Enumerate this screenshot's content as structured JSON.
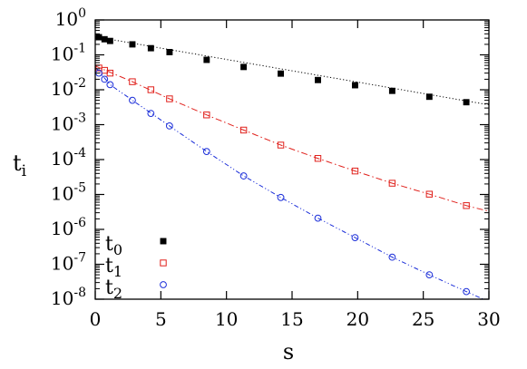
{
  "chart_data": {
    "type": "scatter",
    "xlabel": "s",
    "ylabel": "t",
    "ylabel_sub": "i",
    "xlim": [
      0,
      30
    ],
    "ylim": [
      1e-08,
      1
    ],
    "yscale": "log",
    "grid": false,
    "legend_position": "bottom-left",
    "x_ticks": [
      "0",
      "5",
      "10",
      "15",
      "20",
      "25",
      "30"
    ],
    "y_ticks": [
      {
        "base": "10",
        "exp": "0",
        "value": 1
      },
      {
        "base": "10",
        "exp": "-1",
        "value": 0.1
      },
      {
        "base": "10",
        "exp": "-2",
        "value": 0.01
      },
      {
        "base": "10",
        "exp": "-3",
        "value": 0.001
      },
      {
        "base": "10",
        "exp": "-4",
        "value": 0.0001
      },
      {
        "base": "10",
        "exp": "-5",
        "value": 1e-05
      },
      {
        "base": "10",
        "exp": "-6",
        "value": 1e-06
      },
      {
        "base": "10",
        "exp": "-7",
        "value": 1e-07
      },
      {
        "base": "10",
        "exp": "-8",
        "value": 1e-08
      }
    ],
    "series": [
      {
        "name": "t",
        "name_sub": "0",
        "color": "#000000",
        "marker": "filled-square",
        "line": "dotted",
        "x": [
          0.28,
          0.71,
          1.13,
          2.83,
          4.24,
          5.66,
          8.49,
          11.31,
          14.14,
          16.97,
          19.8,
          22.63,
          25.46,
          28.28
        ],
        "y": [
          0.32,
          0.28,
          0.25,
          0.2,
          0.155,
          0.12,
          0.072,
          0.045,
          0.029,
          0.019,
          0.0135,
          0.0093,
          0.0063,
          0.0044
        ],
        "fit_x": [
          0,
          30
        ],
        "fit_y": [
          0.33,
          0.0037
        ]
      },
      {
        "name": "t",
        "name_sub": "1",
        "color": "#e0201b",
        "marker": "open-square",
        "line": "dash-dot",
        "x": [
          0.28,
          0.71,
          1.13,
          2.83,
          4.24,
          5.66,
          8.49,
          11.31,
          14.14,
          16.97,
          19.8,
          22.63,
          25.46,
          28.28
        ],
        "y": [
          0.042,
          0.036,
          0.03,
          0.017,
          0.01,
          0.0055,
          0.0019,
          0.0007,
          0.00026,
          0.000108,
          4.7e-05,
          2.1e-05,
          1.02e-05,
          4.8e-06
        ],
        "fit_x": [
          0,
          2.83,
          5.66,
          8.49,
          11.31,
          14.14,
          16.97,
          19.8,
          22.63,
          25.46,
          28.28,
          30
        ],
        "fit_y": [
          0.048,
          0.017,
          0.0055,
          0.0019,
          0.0007,
          0.00026,
          0.000108,
          4.7e-05,
          2.1e-05,
          1.02e-05,
          4.8e-06,
          3.3e-06
        ]
      },
      {
        "name": "t",
        "name_sub": "2",
        "color": "#1c2fd9",
        "marker": "open-circle",
        "line": "dash-dot-dot",
        "x": [
          0.28,
          0.71,
          1.13,
          2.83,
          4.24,
          5.66,
          8.49,
          11.31,
          14.14,
          16.97,
          19.8,
          22.63,
          25.46,
          28.28
        ],
        "y": [
          0.03,
          0.02,
          0.014,
          0.005,
          0.0021,
          0.00092,
          0.00017,
          3.4e-05,
          8.2e-06,
          2.1e-06,
          5.8e-07,
          1.6e-07,
          5e-08,
          1.65e-08
        ],
        "fit_x": [
          0,
          1.13,
          2.83,
          5.66,
          8.49,
          11.31,
          14.14,
          16.97,
          19.8,
          22.63,
          25.46,
          28.28,
          30
        ],
        "fit_y": [
          0.045,
          0.014,
          0.005,
          0.00092,
          0.00017,
          3.4e-05,
          8.2e-06,
          2.1e-06,
          5.8e-07,
          1.6e-07,
          5e-08,
          1.65e-08,
          8.5e-09
        ]
      }
    ]
  }
}
